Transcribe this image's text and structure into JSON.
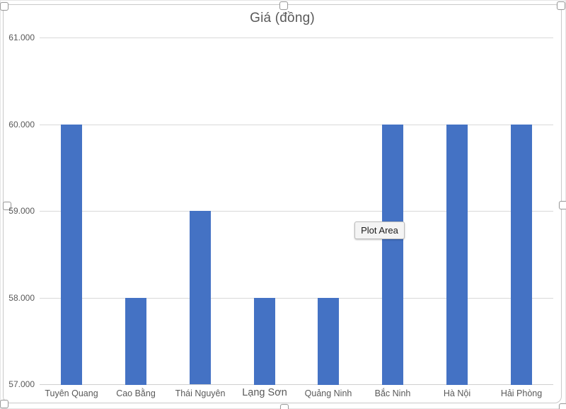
{
  "tooltip": {
    "label": "Plot Area"
  },
  "chart_data": {
    "type": "bar",
    "title": "Giá (đồng)",
    "categories": [
      "Tuyên Quang",
      "Cao Bằng",
      "Thái Nguyên",
      "Lạng Sơn",
      "Quảng Ninh",
      "Bắc Ninh",
      "Hà Nội",
      "Hải Phòng"
    ],
    "values": [
      60000,
      58000,
      59000,
      58000,
      58000,
      60000,
      60000,
      60000
    ],
    "xlabel": "",
    "ylabel": "",
    "ylim": [
      57000,
      61000
    ],
    "ytick_step": 1000,
    "ytick_labels": [
      "57.000",
      "58.000",
      "59.000",
      "60.000",
      "61.000"
    ],
    "grid": true,
    "legend": false,
    "bar_color": "#4472C4",
    "gridline_color": "#D9D9D9",
    "axis_text_color": "#595959"
  }
}
